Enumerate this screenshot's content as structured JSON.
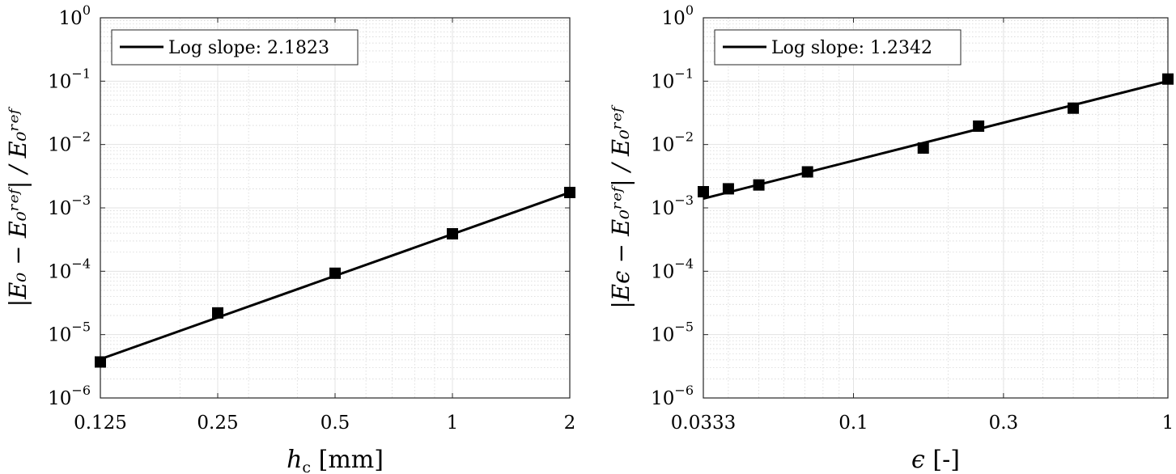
{
  "chart_data": [
    {
      "type": "line",
      "xscale": "log",
      "yscale": "log",
      "xlim": [
        0.125,
        2
      ],
      "ylim": [
        1e-06,
        1
      ],
      "xticks": [
        0.125,
        0.25,
        0.5,
        1,
        2
      ],
      "xtick_labels": [
        "0.125",
        "0.25",
        "0.5",
        "1",
        "2"
      ],
      "yticks": [
        1e-06,
        1e-05,
        0.0001,
        0.001,
        0.01,
        0.1,
        1
      ],
      "ytick_mantissa": [
        "10",
        "10",
        "10",
        "10",
        "10",
        "10",
        "10"
      ],
      "ytick_exponents": [
        "−6",
        "−5",
        "−4",
        "−3",
        "−2",
        "−1",
        "0"
      ],
      "xlabel_main": "h",
      "xlabel_sub": "c",
      "xlabel_unit": "[mm]",
      "ylabel": "|E₀ − E₀ʳᵉᶠ| / E₀ʳᵉᶠ",
      "grid": true,
      "legend_position": "top-left",
      "legend_entry": "Log slope:  2.1823",
      "series": [
        {
          "name": "Log slope:  2.1823",
          "marker": "square",
          "x": [
            0.125,
            0.25,
            0.5,
            1,
            2
          ],
          "y": [
            3.7e-06,
            2.2e-05,
            9.3e-05,
            0.00039,
            0.00175
          ]
        }
      ],
      "fit_line": {
        "x": [
          0.125,
          2
        ],
        "y": [
          4.1e-06,
          0.00175
        ]
      }
    },
    {
      "type": "line",
      "xscale": "log",
      "yscale": "log",
      "xlim": [
        0.0333,
        1
      ],
      "ylim": [
        1e-06,
        1
      ],
      "xticks": [
        0.0333,
        0.1,
        0.3,
        1
      ],
      "xtick_labels": [
        "0.0333",
        "0.1",
        "0.3",
        "1"
      ],
      "yticks": [
        1e-06,
        1e-05,
        0.0001,
        0.001,
        0.01,
        0.1,
        1
      ],
      "ytick_mantissa": [
        "10",
        "10",
        "10",
        "10",
        "10",
        "10",
        "10"
      ],
      "ytick_exponents": [
        "−6",
        "−5",
        "−4",
        "−3",
        "−2",
        "−1",
        "0"
      ],
      "xlabel_main": "ϵ",
      "xlabel_sub": "",
      "xlabel_unit": "[-]",
      "ylabel": "|Eϵ − E₀ʳᵉᶠ| / E₀ʳᵉᶠ",
      "grid": true,
      "legend_position": "top-left",
      "legend_entry": "Log slope:  1.2342",
      "series": [
        {
          "name": "Log slope:  1.2342",
          "marker": "square",
          "x": [
            0.0333,
            0.04,
            0.05,
            0.0714,
            0.1667,
            0.25,
            0.5,
            1
          ],
          "y": [
            0.0018,
            0.002,
            0.0023,
            0.0037,
            0.0088,
            0.0195,
            0.0375,
            0.108
          ]
        }
      ],
      "fit_line": {
        "x": [
          0.0333,
          1
        ],
        "y": [
          0.0014,
          0.1
        ]
      }
    }
  ]
}
